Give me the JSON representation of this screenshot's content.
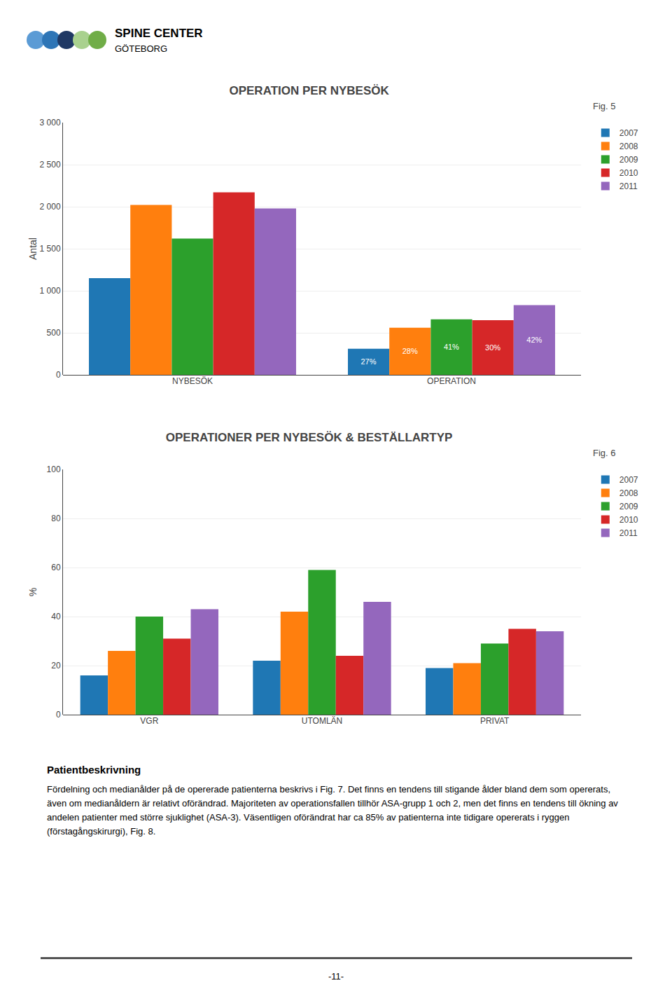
{
  "chart_data": [
    {
      "type": "bar",
      "title": "OPERATION PER NYBESÖK",
      "fig_label": "Fig. 5",
      "ylabel": "Antal",
      "categories": [
        "NYBESÖK",
        "OPERATION"
      ],
      "series": [
        {
          "name": "2007",
          "values": [
            1150,
            310
          ]
        },
        {
          "name": "2008",
          "values": [
            2020,
            560
          ]
        },
        {
          "name": "2009",
          "values": [
            1620,
            660
          ]
        },
        {
          "name": "2010",
          "values": [
            2170,
            650
          ]
        },
        {
          "name": "2011",
          "values": [
            1980,
            830
          ]
        }
      ],
      "annotations": [
        {
          "category": "OPERATION",
          "series": "2007",
          "text": "27%"
        },
        {
          "category": "OPERATION",
          "series": "2008",
          "text": "28%"
        },
        {
          "category": "OPERATION",
          "series": "2009",
          "text": "41%"
        },
        {
          "category": "OPERATION",
          "series": "2010",
          "text": "30%"
        },
        {
          "category": "OPERATION",
          "series": "2011",
          "text": "42%"
        }
      ],
      "ylim": [
        0,
        3000
      ],
      "yticks": [
        0,
        500,
        {
          "value": 1000,
          "label": "1 000"
        },
        {
          "value": 1500,
          "label": "1 500"
        },
        {
          "value": 2000,
          "label": "2 000"
        },
        {
          "value": 2500,
          "label": "2 500"
        },
        {
          "value": 3000,
          "label": "3 000"
        }
      ],
      "grid": true,
      "legend": "right"
    },
    {
      "type": "bar",
      "title": "OPERATIONER PER NYBESÖK & BESTÄLLARTYP",
      "fig_label": "Fig. 6",
      "ylabel": "%",
      "categories": [
        "VGR",
        "UTOMLÄN",
        "PRIVAT"
      ],
      "series": [
        {
          "name": "2007",
          "values": [
            16,
            22,
            19
          ]
        },
        {
          "name": "2008",
          "values": [
            26,
            42,
            21
          ]
        },
        {
          "name": "2009",
          "values": [
            40,
            59,
            29
          ]
        },
        {
          "name": "2010",
          "values": [
            31,
            24,
            35
          ]
        },
        {
          "name": "2011",
          "values": [
            43,
            46,
            34
          ]
        }
      ],
      "ylim": [
        0,
        100
      ],
      "yticks": [
        0,
        20,
        40,
        60,
        80,
        100
      ],
      "grid": true,
      "legend": "right"
    }
  ],
  "logo_text": [
    "SPINE CENTER",
    "GÖTEBORG"
  ],
  "text_heading": "Patientbeskrivning",
  "text_body": "Fördelning och medianålder på de opererade patienterna beskrivs i Fig. 7. Det finns en tendens till stigande ålder bland dem som opererats, även om medianåldern är relativt oförändrad. Majoriteten av operationsfallen tillhör ASA-grupp 1 och 2, men det finns en tendens till ökning av andelen patienter med större sjuklighet (ASA-3). Väsentligen oförändrat har ca 85% av patienterna inte tidigare opererats i ryggen (förstagångskirurgi), Fig. 8.",
  "page_number": "-11-"
}
